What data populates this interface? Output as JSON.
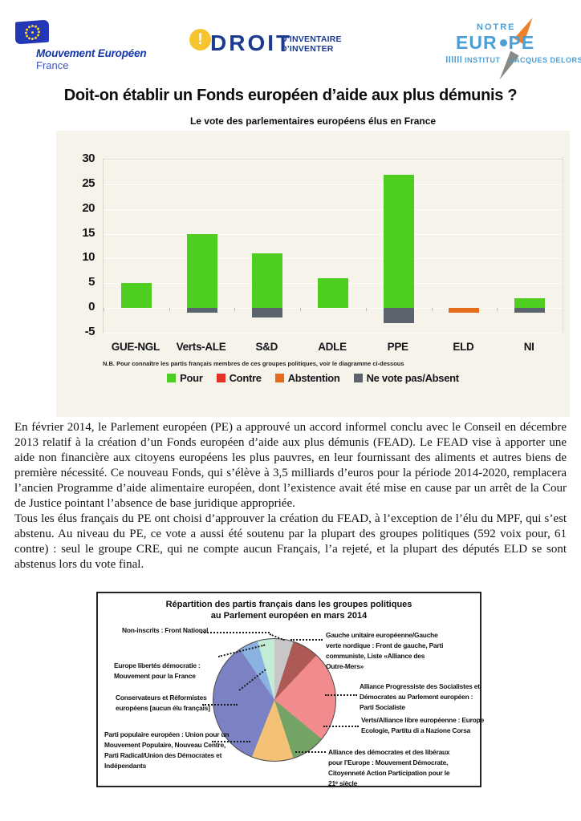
{
  "header": {
    "me_logo": {
      "name_line": "Mouvement Européen",
      "country_line": "France"
    },
    "droit_logo": {
      "mark": "!",
      "word": "DROIT",
      "tagline_line1": "D’INVENTAIRE",
      "tagline_line2": "D’INVENTER"
    },
    "ne_logo": {
      "top": "NOTRE",
      "mid_left": "EUR",
      "mid_right": "PE",
      "bottom_left": "INSTITUT",
      "bottom_right": "JACQUES DELORS"
    }
  },
  "title": "Doit-on établir un Fonds européen d’aide aux plus démunis ?",
  "chart_data": [
    {
      "type": "bar",
      "title": "Le vote des parlementaires européens élus en France",
      "categories": [
        "GUE-NGL",
        "Verts-ALE",
        "S&D",
        "ADLE",
        "PPE",
        "ELD",
        "NI"
      ],
      "series": [
        {
          "name": "Pour",
          "color": "#4ccd1f",
          "values": [
            5,
            15,
            11,
            6,
            27,
            0,
            2
          ]
        },
        {
          "name": "Contre",
          "color": "#e53228",
          "values": [
            0,
            0,
            0,
            0,
            0,
            0,
            0
          ]
        },
        {
          "name": "Abstention",
          "color": "#e56a1a",
          "values": [
            0,
            0,
            0,
            0,
            0,
            -1,
            0
          ]
        },
        {
          "name": "Ne vote pas/Absent",
          "color": "#5b646e",
          "values": [
            0,
            -1,
            -2,
            0,
            -3,
            0,
            -1
          ]
        }
      ],
      "ylim": [
        -5,
        30
      ],
      "yticks": [
        30,
        25,
        20,
        15,
        10,
        5,
        0,
        -5
      ],
      "grid": true,
      "legend_position": "bottom",
      "note": "N.B. Pour connaître les partis français membres de ces groupes politiques, voir le diagramme ci-dessous"
    },
    {
      "type": "pie",
      "title": "Répartition des partis français dans les groupes politiques au Parlement européen en mars 2014",
      "direction": "clockwise",
      "start_angle_deg": 0,
      "slices": [
        {
          "label": "Non-inscrits : Front National",
          "value": 5,
          "color": "#c7c7c7"
        },
        {
          "label": "Gauche unitaire européenne/Gauche verte nordique : Front de gauche, Parti communiste, Liste «Alliance des Outre-Mers»",
          "value": 7,
          "color": "#ad5a57"
        },
        {
          "label": "Alliance Progressiste des Socialistes et Démocrates au Parlement européen : Parti Socialiste",
          "value": 24,
          "color": "#f18b8d"
        },
        {
          "label": "Verts/Alliance libre européenne : Europe Ecologie, Partitu di a Nazione Corsa",
          "value": 9,
          "color": "#74a465"
        },
        {
          "label": "Alliance des démocrates et des libéraux pour l’Europe : Mouvement Démocrate, Citoyenneté Action Participation pour le 21ᵉ siècle",
          "value": 11,
          "color": "#f3c276"
        },
        {
          "label": "Parti populaire européen : Union pour un Mouvement Populaire, Nouveau Centre, Parti Radical/Union des Démocrates et Indépendants",
          "value": 34.5,
          "color": "#7a82c3"
        },
        {
          "label": "Conservateurs et Réformistes européens [aucun élu français]",
          "value": 5,
          "color": "#8cb2e2"
        },
        {
          "label": "Europe libertés démocratie : Mouvement pour la France",
          "value": 4.5,
          "color": "#c2ecd6"
        }
      ]
    }
  ],
  "body": {
    "paragraphs": [
      "En février 2014, le Parlement européen (PE) a approuvé un accord informel conclu avec le Conseil en décembre 2013 relatif à la création d’un Fonds européen d’aide aux plus démunis (FEAD). Le FEAD vise à apporter une aide non financière aux citoyens européens les plus pauvres, en leur fournissant des aliments et autres biens de première nécessité. Ce nouveau Fonds, qui s’élève à 3,5 milliards d’euros pour la période 2014-2020, remplacera l’ancien Programme d’aide alimentaire européen, dont l’existence avait été mise en cause par un arrêt de la Cour de Justice pointant l’absence de base juridique appropriée.",
      "Tous les élus français du PE ont choisi d’approuver la création du FEAD, à l’exception de l’élu du MPF, qui s’est abstenu. Au niveau du PE, ce vote a aussi été soutenu par la plupart des groupes politiques (592 voix pour, 61 contre) : seul le groupe CRE, qui ne compte aucun Français, l’a rejeté, et la plupart des députés ELD se sont abstenus lors du vote final."
    ]
  },
  "pie_section": {
    "title_line1": "Répartition des partis français dans les groupes politiques",
    "title_line2": "au Parlement européen en mars 2014",
    "callouts": [
      {
        "lines": [
          "Non-inscrits : Front National"
        ]
      },
      {
        "lines": [
          "Gauche unitaire européenne/Gauche",
          "verte nordique : Front de gauche, Parti",
          "communiste, Liste «Alliance des",
          "Outre-Mers»"
        ]
      },
      {
        "lines": [
          "Alliance Progressiste des Socialistes et",
          "Démocrates au Parlement européen :",
          "Parti Socialiste"
        ]
      },
      {
        "lines": [
          "Verts/Alliance libre européenne : Europe",
          "Ecologie, Partitu di a Nazione Corsa"
        ]
      },
      {
        "lines": [
          "Alliance des démocrates et des libéraux",
          "pour l’Europe : Mouvement Démocrate,",
          "Citoyenneté Action Participation pour le",
          "21ᵉ siècle"
        ]
      },
      {
        "lines": [
          "Parti populaire européen : Union pour un",
          "Mouvement Populaire, Nouveau Centre,",
          "Parti Radical/Union des Démocrates et",
          "Indépendants"
        ]
      },
      {
        "lines": [
          "Conservateurs et Réformistes",
          "européens [aucun élu français]"
        ]
      },
      {
        "lines": [
          "Europe libertés démocratie :",
          "Mouvement pour la France"
        ]
      }
    ]
  }
}
